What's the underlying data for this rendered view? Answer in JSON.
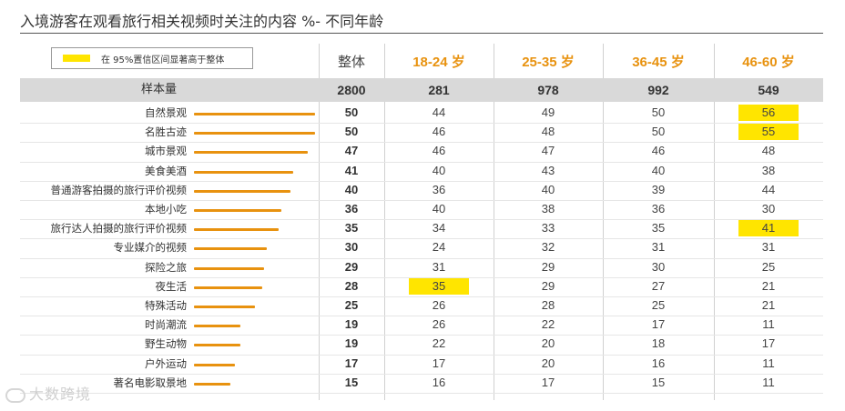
{
  "chart_data": {
    "type": "table",
    "title": "入境游客在观看旅行相关视频时关注的内容 %- 不同年龄",
    "legend": "在 95%置信区间显著高于整体",
    "columns": [
      "整体",
      "18-24 岁",
      "25-35 岁",
      "36-45 岁",
      "46-60 岁"
    ],
    "sample_label": "样本量",
    "sample": [
      "2800",
      "281",
      "978",
      "992",
      "549"
    ],
    "rows": [
      {
        "label": "自然景观",
        "values": [
          "50",
          "44",
          "49",
          "50",
          "56"
        ],
        "highlight": [
          false,
          false,
          false,
          false,
          true
        ]
      },
      {
        "label": "名胜古迹",
        "values": [
          "50",
          "46",
          "48",
          "50",
          "55"
        ],
        "highlight": [
          false,
          false,
          false,
          false,
          true
        ]
      },
      {
        "label": "城市景观",
        "values": [
          "47",
          "46",
          "47",
          "46",
          "48"
        ],
        "highlight": [
          false,
          false,
          false,
          false,
          false
        ]
      },
      {
        "label": "美食美酒",
        "values": [
          "41",
          "40",
          "43",
          "40",
          "38"
        ],
        "highlight": [
          false,
          false,
          false,
          false,
          false
        ]
      },
      {
        "label": "普通游客拍摄的旅行评价视频",
        "values": [
          "40",
          "36",
          "40",
          "39",
          "44"
        ],
        "highlight": [
          false,
          false,
          false,
          false,
          false
        ]
      },
      {
        "label": "本地小吃",
        "values": [
          "36",
          "40",
          "38",
          "36",
          "30"
        ],
        "highlight": [
          false,
          false,
          false,
          false,
          false
        ]
      },
      {
        "label": "旅行达人拍摄的旅行评价视频",
        "values": [
          "35",
          "34",
          "33",
          "35",
          "41"
        ],
        "highlight": [
          false,
          false,
          false,
          false,
          true
        ]
      },
      {
        "label": "专业媒介的视频",
        "values": [
          "30",
          "24",
          "32",
          "31",
          "31"
        ],
        "highlight": [
          false,
          false,
          false,
          false,
          false
        ]
      },
      {
        "label": "探险之旅",
        "values": [
          "29",
          "31",
          "29",
          "30",
          "25"
        ],
        "highlight": [
          false,
          false,
          false,
          false,
          false
        ]
      },
      {
        "label": "夜生活",
        "values": [
          "28",
          "35",
          "29",
          "27",
          "21"
        ],
        "highlight": [
          false,
          true,
          false,
          false,
          false
        ]
      },
      {
        "label": "特殊活动",
        "values": [
          "25",
          "26",
          "28",
          "25",
          "21"
        ],
        "highlight": [
          false,
          false,
          false,
          false,
          false
        ]
      },
      {
        "label": "时尚潮流",
        "values": [
          "19",
          "26",
          "22",
          "17",
          "11"
        ],
        "highlight": [
          false,
          false,
          false,
          false,
          false
        ]
      },
      {
        "label": "野生动物",
        "values": [
          "19",
          "22",
          "20",
          "18",
          "17"
        ],
        "highlight": [
          false,
          false,
          false,
          false,
          false
        ]
      },
      {
        "label": "户外运动",
        "values": [
          "17",
          "17",
          "20",
          "16",
          "11"
        ],
        "highlight": [
          false,
          false,
          false,
          false,
          false
        ]
      },
      {
        "label": "著名电影取景地",
        "values": [
          "15",
          "16",
          "17",
          "15",
          "11"
        ],
        "highlight": [
          false,
          false,
          false,
          false,
          false
        ]
      }
    ],
    "bar_scale_max": 50,
    "colors": {
      "bar": "#e8920f",
      "highlight": "#ffe500",
      "band": "#d9d9d9",
      "age_header": "#e8920f"
    }
  },
  "watermark": "大数跨境"
}
